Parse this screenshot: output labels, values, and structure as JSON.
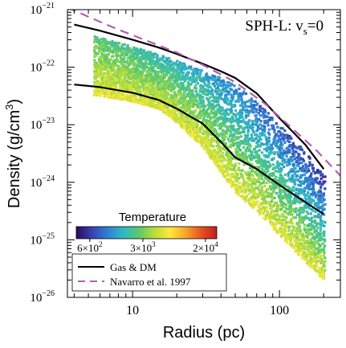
{
  "colors": {
    "curve": "#000000",
    "nfw": "#b060b0",
    "cmap": [
      "#2a0a5e",
      "#3b3fb0",
      "#2f7fd2",
      "#2fb9c4",
      "#5cc86b",
      "#b8dd3a",
      "#ffe83c",
      "#f7a72a",
      "#e8521f",
      "#c21d1d"
    ]
  },
  "chart_data": {
    "type": "scatter",
    "annotation": "SPH-L: v",
    "annotation_sub": "s",
    "annotation_tail": "=0",
    "xlabel": "Radius (pc)",
    "ylabel": "Density (g/cm",
    "ylabel_sup": "3",
    "ylabel_tail": ")",
    "xscale": "log",
    "yscale": "log",
    "xlim": [
      3.6,
      260
    ],
    "ylim": [
      1e-26,
      1e-21
    ],
    "x_ticks": [
      {
        "value": 10,
        "label": "10"
      },
      {
        "value": 100,
        "label": "100"
      }
    ],
    "y_ticks": [
      {
        "value": 1e-21,
        "mant": "10",
        "exp": "−21"
      },
      {
        "value": 1e-22,
        "mant": "10",
        "exp": "−22"
      },
      {
        "value": 1e-23,
        "mant": "10",
        "exp": "−23"
      },
      {
        "value": 1e-24,
        "mant": "10",
        "exp": "−24"
      },
      {
        "value": 1e-25,
        "mant": "10",
        "exp": "−25"
      },
      {
        "value": 1e-26,
        "mant": "10",
        "exp": "−26"
      }
    ],
    "colorbar": {
      "title": "Temperature",
      "log_range": [
        2.6,
        4.45
      ],
      "ticks": [
        {
          "value": 600,
          "mant": "6×10",
          "exp": "2"
        },
        {
          "value": 3000,
          "mant": "3×10",
          "exp": "3"
        },
        {
          "value": 20000,
          "mant": "2×10",
          "exp": "4"
        }
      ]
    },
    "legend": {
      "entries": [
        {
          "name": "Gas & DM",
          "style": "solid"
        },
        {
          "name": "Navarro et al. 1997",
          "style": "dashed"
        }
      ]
    },
    "series": [
      {
        "name": "Gas & DM",
        "style": "solid",
        "points": [
          [
            4,
            5.5e-22
          ],
          [
            6,
            4.3e-22
          ],
          [
            10,
            3e-22
          ],
          [
            15,
            2.2e-22
          ],
          [
            20,
            1.7e-22
          ],
          [
            30,
            1.15e-22
          ],
          [
            40,
            8.5e-23
          ],
          [
            50,
            6.5e-23
          ],
          [
            70,
            3.5e-23
          ],
          [
            100,
            1.3e-23
          ],
          [
            150,
            4.5e-24
          ],
          [
            200,
            1.7e-24
          ]
        ]
      },
      {
        "name": "Gas & DM",
        "style": "solid",
        "points": [
          [
            4,
            5e-23
          ],
          [
            6,
            4.5e-23
          ],
          [
            10,
            3.6e-23
          ],
          [
            15,
            2.7e-23
          ],
          [
            20,
            1.9e-23
          ],
          [
            30,
            1.05e-23
          ],
          [
            40,
            5e-24
          ],
          [
            50,
            2.7e-24
          ],
          [
            70,
            1.7e-24
          ],
          [
            100,
            9e-25
          ],
          [
            150,
            4.5e-25
          ],
          [
            200,
            2.8e-25
          ]
        ]
      },
      {
        "name": "Navarro et al. 1997",
        "style": "dashed",
        "points": [
          [
            3.6,
            1.1e-21
          ],
          [
            5,
            7.5e-22
          ],
          [
            8,
            4.5e-22
          ],
          [
            12,
            3e-22
          ],
          [
            20,
            1.8e-22
          ],
          [
            30,
            1.1e-22
          ],
          [
            50,
            5.5e-23
          ],
          [
            80,
            2.3e-23
          ],
          [
            120,
            9e-24
          ],
          [
            180,
            3.5e-24
          ],
          [
            260,
            1.3e-24
          ]
        ]
      }
    ]
  }
}
